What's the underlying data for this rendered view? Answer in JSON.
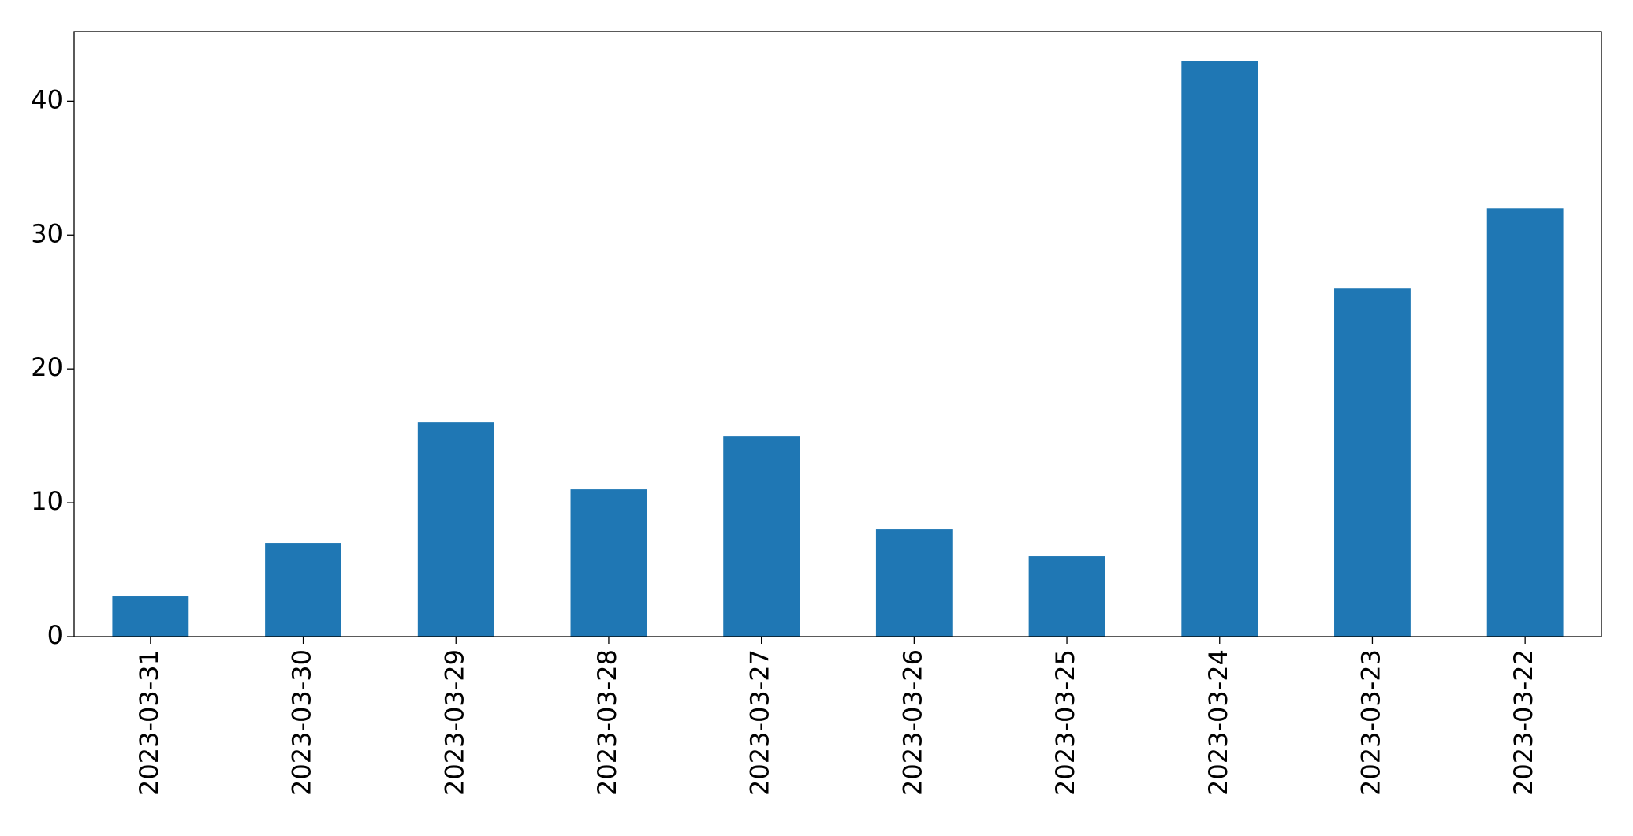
{
  "chart_data": {
    "type": "bar",
    "categories": [
      "2023-03-31",
      "2023-03-30",
      "2023-03-29",
      "2023-03-28",
      "2023-03-27",
      "2023-03-26",
      "2023-03-25",
      "2023-03-24",
      "2023-03-23",
      "2023-03-22"
    ],
    "values": [
      3,
      7,
      16,
      11,
      15,
      8,
      6,
      43,
      26,
      32
    ],
    "color": "#1f77b4",
    "ylim": [
      0,
      45.2
    ],
    "yticks": [
      0,
      10,
      20,
      30,
      40
    ],
    "grid": false
  }
}
